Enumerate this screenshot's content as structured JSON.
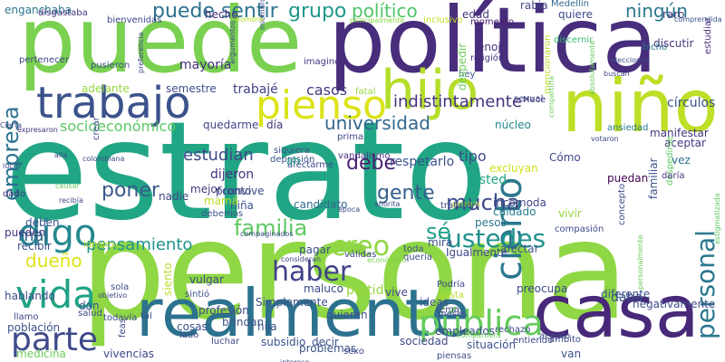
{
  "palette": {
    "purple": "#440154",
    "indigo": "#3b528b",
    "teal": "#21918c",
    "green": "#5ec962",
    "yellow": "#fde725",
    "lime": "#b5de2b",
    "blue": "#31688e",
    "seagreen": "#35b779"
  },
  "words": [
    {
      "text": "estrato",
      "color": "#21a685"
    },
    {
      "text": "persona",
      "color": "#8fd744"
    },
    {
      "text": "puede",
      "color": "#7ad151"
    },
    {
      "text": "política",
      "color": "#472d7b"
    },
    {
      "text": "realmente",
      "color": "#2c728e"
    },
    {
      "text": "casa",
      "color": "#482878"
    },
    {
      "text": "niño",
      "color": "#bddf26"
    },
    {
      "text": "hijo",
      "color": "#b5de2b"
    },
    {
      "text": "trabajo",
      "color": "#3b528b"
    },
    {
      "text": "pienso",
      "color": "#dce319"
    },
    {
      "text": "personal",
      "color": "#2a788e"
    },
    {
      "text": "digo",
      "color": "#23888e"
    },
    {
      "text": "vida",
      "color": "#20a386"
    },
    {
      "text": "parte",
      "color": "#3e4989"
    },
    {
      "text": "pública",
      "color": "#65cb5e"
    },
    {
      "text": "cierto",
      "color": "#2a788e"
    },
    {
      "text": "empresa",
      "color": "#2c728e"
    },
    {
      "text": "familia",
      "color": "#5ec962"
    },
    {
      "text": "haber",
      "color": "#404387"
    },
    {
      "text": "creo",
      "color": "#90d743"
    },
    {
      "text": "mucha",
      "color": "#3e4a89"
    },
    {
      "text": "ustedes",
      "color": "#21918c"
    },
    {
      "text": "universidad",
      "color": "#31688e"
    },
    {
      "text": "puede sentir",
      "color": "#2c728e"
    },
    {
      "text": "político",
      "color": "#52c569"
    },
    {
      "text": "grupo",
      "color": "#1f988b"
    },
    {
      "text": "ningún",
      "color": "#2a788e"
    },
    {
      "text": "poner",
      "color": "#38598c"
    },
    {
      "text": "debe",
      "color": "#481f70"
    },
    {
      "text": "gente",
      "color": "#355f8d"
    },
    {
      "text": "estudian",
      "color": "#3e4989"
    },
    {
      "text": "dueño",
      "color": "#dde318"
    },
    {
      "text": "mal",
      "color": "#31688e"
    },
    {
      "text": "sé",
      "color": "#1fa088"
    },
    {
      "text": "pensamiento",
      "color": "#20928c"
    },
    {
      "text": "socioeconómico",
      "color": "#5ac864"
    },
    {
      "text": "indistintamente",
      "color": "#46337e"
    },
    {
      "text": "trabajé",
      "color": "#414487"
    },
    {
      "text": "casos",
      "color": "#443983"
    },
    {
      "text": "mayoría",
      "color": "#472f7d"
    },
    {
      "text": "semestre",
      "color": "#3e4c8a"
    },
    {
      "text": "adelante",
      "color": "#95d840"
    },
    {
      "text": "respetarlo",
      "color": "#3b528b"
    },
    {
      "text": "dijeron",
      "color": "#46337e"
    },
    {
      "text": "pronto",
      "color": "#3f4788"
    },
    {
      "text": "niña",
      "color": "#39568c"
    },
    {
      "text": "mejor",
      "color": "#453781"
    },
    {
      "text": "candidato",
      "color": "#2f6c8e"
    },
    {
      "text": "excluyan",
      "color": "#d0e11c"
    },
    {
      "text": "incomoda",
      "color": "#3f4889"
    },
    {
      "text": "cuidado",
      "color": "#277f8e"
    },
    {
      "text": "pesos",
      "color": "#2a788e"
    },
    {
      "text": "usted",
      "color": "#21a685"
    },
    {
      "text": "tipo",
      "color": "#3d4d8a"
    },
    {
      "text": "Cómo",
      "color": "#3f4788"
    },
    {
      "text": "edad",
      "color": "#46337e"
    },
    {
      "text": "rabia",
      "color": "#3e4989"
    },
    {
      "text": "quiere",
      "color": "#3f4889"
    },
    {
      "text": "raro",
      "color": "#443a83"
    },
    {
      "text": "momento",
      "color": "#481f70"
    },
    {
      "text": "Medellín",
      "color": "#31688e"
    },
    {
      "text": "hecho",
      "color": "#472c7a"
    },
    {
      "text": "enganchaba",
      "color": "#2a768e"
    },
    {
      "text": "disgustaba",
      "color": "#46327e"
    },
    {
      "text": "bienvenidas",
      "color": "#3f4788"
    },
    {
      "text": "principalmente",
      "color": "#8bd646"
    },
    {
      "text": "inclusivo",
      "color": "#c2df23"
    },
    {
      "text": "comprendida",
      "color": "#3b528b"
    },
    {
      "text": "estudiar",
      "color": "#472d7b"
    },
    {
      "text": "discutir",
      "color": "#46337e"
    },
    {
      "text": "bicho",
      "color": "#2c728e"
    },
    {
      "text": "discernir",
      "color": "#3aba76"
    },
    {
      "text": "religión",
      "color": "#46337e"
    },
    {
      "text": "enojo",
      "color": "#472d7b"
    },
    {
      "text": "mencionaron",
      "color": "#b8de29"
    },
    {
      "text": "absolutamente",
      "color": "#63cb5f"
    },
    {
      "text": "círculos",
      "color": "#3b528b"
    },
    {
      "text": "Hace",
      "color": "#443983"
    },
    {
      "text": "hey",
      "color": "#39568c"
    },
    {
      "text": "despedir",
      "color": "#6ccd5a"
    },
    {
      "text": "imagino",
      "color": "#46327e"
    },
    {
      "text": "pertenecer",
      "color": "#404588"
    },
    {
      "text": "pusieron",
      "color": "#3b518b"
    },
    {
      "text": "preferencia",
      "color": "#414487"
    },
    {
      "text": "argumentos",
      "color": "#3f4788"
    },
    {
      "text": "sexual",
      "color": "#3f4788"
    },
    {
      "text": "compartirla",
      "color": "#6ccd5a"
    },
    {
      "text": "fatal",
      "color": "#98d83e"
    },
    {
      "text": "núcleo",
      "color": "#24878e"
    },
    {
      "text": "ansiedad",
      "color": "#2a788e"
    },
    {
      "text": "manifestar",
      "color": "#46337e"
    },
    {
      "text": "aceptar",
      "color": "#443983"
    },
    {
      "text": "vez",
      "color": "#2c728e"
    },
    {
      "text": "puedan",
      "color": "#440154"
    },
    {
      "text": "familiar",
      "color": "#3b528b"
    },
    {
      "text": "despedirse",
      "color": "#5ec962"
    },
    {
      "text": "daría",
      "color": "#46337e"
    },
    {
      "text": "estigmatizada",
      "color": "#5ec962"
    },
    {
      "text": "concepto",
      "color": "#3e4a89"
    },
    {
      "text": "vivir",
      "color": "#94d840"
    },
    {
      "text": "compasión",
      "color": "#3e4c8a"
    },
    {
      "text": "Cierta",
      "color": "#3f4788"
    },
    {
      "text": "expresaron",
      "color": "#46337e"
    },
    {
      "text": "prima",
      "color": "#3f4788"
    },
    {
      "text": "siquiera",
      "color": "#3e4c8a"
    },
    {
      "text": "depresión",
      "color": "#3b528b"
    },
    {
      "text": "vandalismo",
      "color": "#46337e"
    },
    {
      "text": "votaron",
      "color": "#3e4c8a"
    },
    {
      "text": "afectarme",
      "color": "#3e4989"
    },
    {
      "text": "día",
      "color": "#46337e"
    },
    {
      "text": "ah",
      "color": "#1fa088"
    },
    {
      "text": "quedarme",
      "color": "#404588"
    },
    {
      "text": "crear",
      "color": "#3e4c8a"
    },
    {
      "text": "colombiana",
      "color": "#3e4c8a"
    },
    {
      "text": "alla",
      "color": "#3f4788"
    },
    {
      "text": "lucro",
      "color": "#3f4788"
    },
    {
      "text": "causar",
      "color": "#6ccd5a"
    },
    {
      "text": "dado",
      "color": "#443983"
    },
    {
      "text": "recibía",
      "color": "#3e4989"
    },
    {
      "text": "nadie",
      "color": "#3f4788"
    },
    {
      "text": "convive",
      "color": "#3e4c8a"
    },
    {
      "text": "mamá",
      "color": "#b8de29"
    },
    {
      "text": "debemos",
      "color": "#3b528b"
    },
    {
      "text": "compaginados",
      "color": "#3e4c8a"
    },
    {
      "text": "época",
      "color": "#3f4788"
    },
    {
      "text": "ahorita",
      "color": "#3e4c8a"
    },
    {
      "text": "palabra",
      "color": "#b8de29"
    },
    {
      "text": "trataron",
      "color": "#3e4c8a"
    },
    {
      "text": "mira",
      "color": "#3b528b"
    },
    {
      "text": "Igualmente",
      "color": "#3e4989"
    },
    {
      "text": "afectar",
      "color": "#3b528b"
    },
    {
      "text": "toda",
      "color": "#3e4c8a"
    },
    {
      "text": "quería",
      "color": "#3e4c8a"
    },
    {
      "text": "económico",
      "color": "#7ad151"
    },
    {
      "text": "pagar",
      "color": "#3b528b"
    },
    {
      "text": "consideran",
      "color": "#3f4788"
    },
    {
      "text": "válidas",
      "color": "#3e4989"
    },
    {
      "text": "deben",
      "color": "#3b528b"
    },
    {
      "text": "pueden",
      "color": "#46337e"
    },
    {
      "text": "recibir",
      "color": "#3b528b"
    },
    {
      "text": "ideales",
      "color": "#b8de29"
    },
    {
      "text": "maluco",
      "color": "#3e4989"
    },
    {
      "text": "partido",
      "color": "#98d83e"
    },
    {
      "text": "vive",
      "color": "#3e4989"
    },
    {
      "text": "preocupa",
      "color": "#3e4989"
    },
    {
      "text": "Podría",
      "color": "#3e4989"
    },
    {
      "text": "gusta",
      "color": "#b8de29"
    },
    {
      "text": "tema",
      "color": "#3f4788"
    },
    {
      "text": "ideas",
      "color": "#3b528b"
    },
    {
      "text": "meses",
      "color": "#3e4989"
    },
    {
      "text": "diferente",
      "color": "#3b528b"
    },
    {
      "text": "daba",
      "color": "#3b528b"
    },
    {
      "text": "negativamente",
      "color": "#3e4c8a"
    },
    {
      "text": "personalmente",
      "color": "#6ccd5a"
    },
    {
      "text": "hablando",
      "color": "#3e4c8a"
    },
    {
      "text": "sola",
      "color": "#3e4c8a"
    },
    {
      "text": "objetivo",
      "color": "#3f4788"
    },
    {
      "text": "vulgar",
      "color": "#3e4989"
    },
    {
      "text": "sintió",
      "color": "#3b528b"
    },
    {
      "text": "siento",
      "color": "#b8de29"
    },
    {
      "text": "profesión",
      "color": "#3e4989"
    },
    {
      "text": "Simplemente",
      "color": "#3b528b"
    },
    {
      "text": "brindan",
      "color": "#3b528b"
    },
    {
      "text": "quieren",
      "color": "#3b528b"
    },
    {
      "text": "hija",
      "color": "#3b528b"
    },
    {
      "text": "empleados",
      "color": "#3e4989"
    },
    {
      "text": "compartiera",
      "color": "#6ccd5a"
    },
    {
      "text": "rechazo",
      "color": "#3e4989"
    },
    {
      "text": "acepto",
      "color": "#3b528b"
    },
    {
      "text": "ámbito",
      "color": "#3e4c8a"
    },
    {
      "text": "llamo",
      "color": "#3e4c8a"
    },
    {
      "text": "dan",
      "color": "#3b528b"
    },
    {
      "text": "salud",
      "color": "#3e4989"
    },
    {
      "text": "todavía",
      "color": "#3e4c8a"
    },
    {
      "text": "tal",
      "color": "#3e4c8a"
    },
    {
      "text": "población",
      "color": "#3b528b"
    },
    {
      "text": "cosas",
      "color": "#3b528b"
    },
    {
      "text": "lado",
      "color": "#3e4989"
    },
    {
      "text": "luchar",
      "color": "#3e4989"
    },
    {
      "text": "subsidio",
      "color": "#3b528b"
    },
    {
      "text": "problemas",
      "color": "#3b528b"
    },
    {
      "text": "decir",
      "color": "#3b528b"
    },
    {
      "text": "sexo",
      "color": "#3e4989"
    },
    {
      "text": "sociedad",
      "color": "#3e4989"
    },
    {
      "text": "situación",
      "color": "#3b528b"
    },
    {
      "text": "entiendo",
      "color": "#3e4989"
    },
    {
      "text": "van",
      "color": "#3b528b"
    },
    {
      "text": "feas",
      "color": "#3e4c8a"
    },
    {
      "text": "vivencias",
      "color": "#3e4989"
    },
    {
      "text": "interese",
      "color": "#3e4c8a"
    },
    {
      "text": "piensas",
      "color": "#3e4c8a"
    },
    {
      "text": "medicina",
      "color": "#6ccd5a"
    },
    {
      "text": "miembros",
      "color": "#3e4c8a"
    },
    {
      "text": "hombre",
      "color": "#b8de29"
    },
    {
      "text": "elecciones",
      "color": "#3f4788"
    },
    {
      "text": "buscan",
      "color": "#3f4788"
    }
  ]
}
